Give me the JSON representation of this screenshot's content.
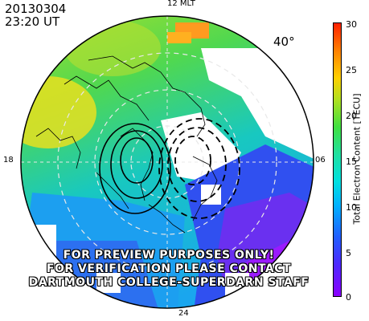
{
  "header": {
    "date": "20130304",
    "time": "23:20 UT"
  },
  "mlt_labels": {
    "top": "12 MLT",
    "left": "18",
    "right": "06",
    "bottom": "24"
  },
  "latitude_label": "40°",
  "watermark": [
    "FOR PREVIEW PURPOSES ONLY!",
    "FOR VERIFICATION PLEASE CONTACT",
    "DARTMOUTH COLLEGE-SUPERDARN STAFF"
  ],
  "colorbar": {
    "label": "Total Electron Content [TECU]",
    "ticks": [
      "30",
      "25",
      "20",
      "15",
      "10",
      "5",
      "0"
    ],
    "colors": [
      "#8a00ff",
      "#2060ff",
      "#00e0e0",
      "#40e040",
      "#ffd000",
      "#ff2000"
    ]
  }
}
